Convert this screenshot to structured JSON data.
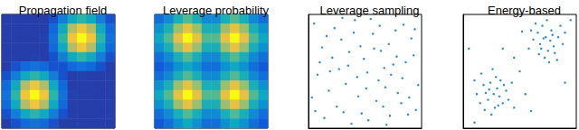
{
  "chart_data": [
    {
      "type": "heatmap",
      "title": "Propagation field",
      "tick_labels": false,
      "zlim": [
        0,
        1
      ],
      "z": [
        [
          0.05,
          0.05,
          0.05,
          0.05,
          0.05,
          0.1,
          0.24,
          0.41,
          0.49,
          0.41,
          0.24,
          0.1
        ],
        [
          0.05,
          0.05,
          0.05,
          0.05,
          0.05,
          0.17,
          0.41,
          0.7,
          0.84,
          0.7,
          0.41,
          0.17
        ],
        [
          0.05,
          0.05,
          0.05,
          0.05,
          0.06,
          0.2,
          0.49,
          0.84,
          1.0,
          0.84,
          0.49,
          0.2
        ],
        [
          0.05,
          0.05,
          0.05,
          0.05,
          0.05,
          0.17,
          0.41,
          0.7,
          0.84,
          0.7,
          0.41,
          0.17
        ],
        [
          0.05,
          0.05,
          0.05,
          0.06,
          0.05,
          0.1,
          0.24,
          0.41,
          0.49,
          0.41,
          0.24,
          0.1
        ],
        [
          0.05,
          0.1,
          0.17,
          0.2,
          0.17,
          0.1,
          0.1,
          0.17,
          0.2,
          0.17,
          0.1,
          0.05
        ],
        [
          0.1,
          0.24,
          0.41,
          0.49,
          0.41,
          0.24,
          0.1,
          0.05,
          0.06,
          0.05,
          0.05,
          0.05
        ],
        [
          0.17,
          0.41,
          0.7,
          0.84,
          0.7,
          0.41,
          0.17,
          0.05,
          0.05,
          0.05,
          0.05,
          0.05
        ],
        [
          0.2,
          0.49,
          0.84,
          1.0,
          0.84,
          0.49,
          0.2,
          0.06,
          0.05,
          0.05,
          0.05,
          0.05
        ],
        [
          0.17,
          0.41,
          0.7,
          0.84,
          0.7,
          0.41,
          0.17,
          0.05,
          0.05,
          0.05,
          0.05,
          0.05
        ],
        [
          0.1,
          0.24,
          0.41,
          0.49,
          0.41,
          0.24,
          0.1,
          0.05,
          0.05,
          0.05,
          0.05,
          0.05
        ],
        [
          0.05,
          0.1,
          0.17,
          0.2,
          0.17,
          0.1,
          0.05,
          0.05,
          0.05,
          0.05,
          0.05,
          0.05
        ]
      ]
    },
    {
      "type": "heatmap",
      "title": "Leverage probability",
      "tick_labels": false,
      "zlim": [
        0,
        1
      ],
      "z": [
        [
          0.19,
          0.28,
          0.44,
          0.55,
          0.44,
          0.28,
          0.28,
          0.44,
          0.55,
          0.44,
          0.28,
          0.19
        ],
        [
          0.31,
          0.44,
          0.66,
          0.81,
          0.66,
          0.44,
          0.44,
          0.66,
          0.81,
          0.66,
          0.44,
          0.31
        ],
        [
          0.4,
          0.55,
          0.81,
          1.0,
          0.81,
          0.55,
          0.55,
          0.81,
          1.0,
          0.81,
          0.55,
          0.4
        ],
        [
          0.31,
          0.44,
          0.66,
          0.81,
          0.66,
          0.44,
          0.44,
          0.66,
          0.81,
          0.66,
          0.44,
          0.31
        ],
        [
          0.19,
          0.28,
          0.44,
          0.55,
          0.44,
          0.28,
          0.28,
          0.44,
          0.55,
          0.44,
          0.28,
          0.19
        ],
        [
          0.12,
          0.19,
          0.31,
          0.4,
          0.31,
          0.19,
          0.19,
          0.31,
          0.4,
          0.31,
          0.19,
          0.12
        ],
        [
          0.19,
          0.28,
          0.44,
          0.55,
          0.44,
          0.28,
          0.28,
          0.44,
          0.55,
          0.44,
          0.28,
          0.19
        ],
        [
          0.31,
          0.44,
          0.66,
          0.81,
          0.66,
          0.44,
          0.44,
          0.66,
          0.81,
          0.66,
          0.44,
          0.31
        ],
        [
          0.4,
          0.55,
          0.81,
          1.0,
          0.81,
          0.55,
          0.55,
          0.81,
          1.0,
          0.81,
          0.55,
          0.4
        ],
        [
          0.31,
          0.44,
          0.66,
          0.81,
          0.66,
          0.44,
          0.44,
          0.66,
          0.81,
          0.66,
          0.44,
          0.31
        ],
        [
          0.19,
          0.28,
          0.44,
          0.55,
          0.44,
          0.28,
          0.28,
          0.44,
          0.55,
          0.44,
          0.28,
          0.19
        ],
        [
          0.12,
          0.19,
          0.31,
          0.4,
          0.31,
          0.19,
          0.19,
          0.31,
          0.4,
          0.31,
          0.19,
          0.12
        ]
      ]
    },
    {
      "type": "scatter",
      "title": "Leverage sampling",
      "tick_labels": false,
      "color": "#0072bd",
      "xlim": [
        0,
        1
      ],
      "ylim": [
        0,
        1
      ],
      "points": [
        [
          0.05,
          0.92
        ],
        [
          0.12,
          0.71
        ],
        [
          0.18,
          0.33
        ],
        [
          0.23,
          0.88
        ],
        [
          0.27,
          0.52
        ],
        [
          0.31,
          0.14
        ],
        [
          0.36,
          0.67
        ],
        [
          0.41,
          0.95
        ],
        [
          0.44,
          0.28
        ],
        [
          0.49,
          0.61
        ],
        [
          0.53,
          0.07
        ],
        [
          0.57,
          0.83
        ],
        [
          0.62,
          0.42
        ],
        [
          0.66,
          0.19
        ],
        [
          0.71,
          0.74
        ],
        [
          0.75,
          0.56
        ],
        [
          0.79,
          0.31
        ],
        [
          0.84,
          0.91
        ],
        [
          0.88,
          0.12
        ],
        [
          0.93,
          0.64
        ],
        [
          0.97,
          0.38
        ],
        [
          0.08,
          0.47
        ],
        [
          0.14,
          0.09
        ],
        [
          0.21,
          0.62
        ],
        [
          0.29,
          0.78
        ],
        [
          0.33,
          0.39
        ],
        [
          0.38,
          0.04
        ],
        [
          0.46,
          0.72
        ],
        [
          0.51,
          0.35
        ],
        [
          0.55,
          0.96
        ],
        [
          0.6,
          0.24
        ],
        [
          0.64,
          0.68
        ],
        [
          0.69,
          0.03
        ],
        [
          0.73,
          0.47
        ],
        [
          0.77,
          0.86
        ],
        [
          0.82,
          0.22
        ],
        [
          0.86,
          0.58
        ],
        [
          0.91,
          0.79
        ],
        [
          0.95,
          0.16
        ],
        [
          0.03,
          0.27
        ],
        [
          0.1,
          0.58
        ],
        [
          0.16,
          0.81
        ],
        [
          0.25,
          0.19
        ],
        [
          0.3,
          0.97
        ],
        [
          0.35,
          0.55
        ],
        [
          0.4,
          0.84
        ],
        [
          0.47,
          0.13
        ],
        [
          0.52,
          0.49
        ],
        [
          0.58,
          0.7
        ],
        [
          0.63,
          0.9
        ],
        [
          0.68,
          0.36
        ],
        [
          0.72,
          0.11
        ],
        [
          0.78,
          0.63
        ],
        [
          0.83,
          0.44
        ],
        [
          0.89,
          0.27
        ],
        [
          0.94,
          0.87
        ],
        [
          0.06,
          0.15
        ],
        [
          0.19,
          0.5
        ],
        [
          0.43,
          0.45
        ],
        [
          0.67,
          0.53
        ]
      ]
    },
    {
      "type": "scatter",
      "title": "Energy-based",
      "tick_labels": false,
      "color": "#0072bd",
      "xlim": [
        0,
        1
      ],
      "ylim": [
        0,
        1
      ],
      "points": [
        [
          0.22,
          0.25
        ],
        [
          0.3,
          0.35
        ],
        [
          0.18,
          0.38
        ],
        [
          0.35,
          0.22
        ],
        [
          0.27,
          0.3
        ],
        [
          0.24,
          0.4
        ],
        [
          0.32,
          0.28
        ],
        [
          0.15,
          0.22
        ],
        [
          0.38,
          0.33
        ],
        [
          0.28,
          0.18
        ],
        [
          0.2,
          0.31
        ],
        [
          0.33,
          0.42
        ],
        [
          0.25,
          0.12
        ],
        [
          0.12,
          0.3
        ],
        [
          0.4,
          0.25
        ],
        [
          0.29,
          0.45
        ],
        [
          0.19,
          0.16
        ],
        [
          0.36,
          0.38
        ],
        [
          0.23,
          0.34
        ],
        [
          0.31,
          0.2
        ],
        [
          0.1,
          0.42
        ],
        [
          0.43,
          0.4
        ],
        [
          0.26,
          0.52
        ],
        [
          0.16,
          0.48
        ],
        [
          0.45,
          0.18
        ],
        [
          0.73,
          0.8
        ],
        [
          0.68,
          0.74
        ],
        [
          0.78,
          0.86
        ],
        [
          0.8,
          0.72
        ],
        [
          0.66,
          0.84
        ],
        [
          0.75,
          0.68
        ],
        [
          0.7,
          0.9
        ],
        [
          0.84,
          0.8
        ],
        [
          0.62,
          0.78
        ],
        [
          0.77,
          0.77
        ],
        [
          0.72,
          0.62
        ],
        [
          0.86,
          0.9
        ],
        [
          0.69,
          0.7
        ],
        [
          0.81,
          0.66
        ],
        [
          0.64,
          0.92
        ],
        [
          0.88,
          0.74
        ],
        [
          0.74,
          0.95
        ],
        [
          0.58,
          0.7
        ],
        [
          0.79,
          0.82
        ],
        [
          0.67,
          0.65
        ],
        [
          0.9,
          0.84
        ],
        [
          0.6,
          0.86
        ],
        [
          0.83,
          0.6
        ],
        [
          0.71,
          0.79
        ],
        [
          0.76,
          0.58
        ],
        [
          0.05,
          0.7
        ],
        [
          0.5,
          0.5
        ],
        [
          0.55,
          0.3
        ],
        [
          0.45,
          0.62
        ],
        [
          0.9,
          0.4
        ],
        [
          0.35,
          0.7
        ],
        [
          0.6,
          0.15
        ],
        [
          0.1,
          0.05
        ],
        [
          0.95,
          0.95
        ],
        [
          0.52,
          0.85
        ]
      ]
    }
  ]
}
